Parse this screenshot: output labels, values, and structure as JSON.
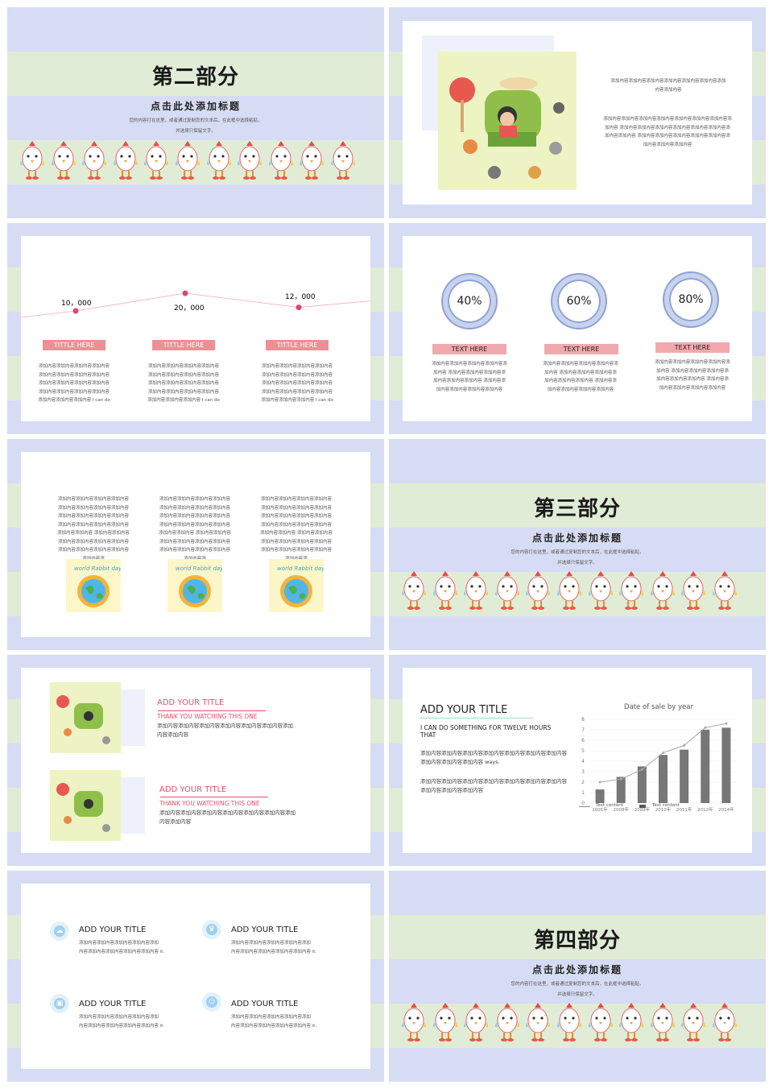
{
  "section2": {
    "title": "第二部分",
    "subtitle": "点击此处添加标题",
    "line1": "您的内容打在这里，或者通过复制您的文本后，在此框中选择粘贴，",
    "line2": "并选择只保留文字。"
  },
  "slide2": {
    "text1": "添加内容添加内容添加内容添加内容添加内容添加内容添加",
    "text1b": "内容添加内容",
    "text2": [
      "添加内容添加内容添加内容添加内容添加内容添加内容添加内容添",
      "加内容 添加内容添加内容添加内容添加内容添加内容添加内容添",
      "加内容添加内容 添加内容添加内容添加内容添加内容添加内容添",
      "加内容添加内容添加内容"
    ]
  },
  "slide3": {
    "values": [
      "10，000",
      "20，000",
      "12，000"
    ],
    "points": [
      10000,
      20000,
      12000
    ],
    "labels": [
      "TITTLE HERE",
      "TITTLE HERE",
      "TITTLE HERE"
    ],
    "text": [
      "添加内容添加内容添加内容添加内容",
      "添加内容添加内容添加内容添加内容",
      "添加内容添加内容添加内容添加内容",
      "添加内容添加内容添加内容添加内容",
      "添加内容添加内容添加内容 I can do"
    ]
  },
  "slide4": {
    "pct": [
      "40%",
      "60%",
      "80%"
    ],
    "labels": [
      "TEXT  HERE",
      "TEXT  HERE",
      "TEXT  HERE"
    ],
    "text": [
      "添加内容添加内容添加内容添加内容添",
      "加内容 添加内容添加内容添加内容添",
      "加内容添加内容添加内容 添加内容添",
      "加内容添加内容添加内容添加内容"
    ]
  },
  "slide5": {
    "text": [
      "添加内容添加内容添加内容添加内容",
      "添加内容添加内容添加内容添加内容",
      "添加内容添加内容添加内容添加内容",
      "添加内容添加内容添加内容添加内容",
      "添加内容添加内容 添加内容添加内容",
      "添加内容添加内容添加内容添加内容",
      "添加内容添加内容添加内容添加内容",
      "添加内容添"
    ],
    "earth_text": "world Rabbit day"
  },
  "section3": {
    "title": "第三部分",
    "subtitle": "点击此处添加标题",
    "line1": "您的内容打在这里，或者通过复制您的文本后，在此框中选择粘贴，",
    "line2": "并选择只保留文字。"
  },
  "slide7": {
    "items": [
      {
        "title": "ADD YOUR TITLE",
        "sub": "THANK YOU WATCHING THIS ONE",
        "body1": "添加内容添加内容添加内容添加内容添加内容添加内容添加",
        "body2": "内容添加内容"
      },
      {
        "title": "ADD YOUR TITLE",
        "sub": "THANK YOU WATCHING THIS ONE",
        "body1": "添加内容添加内容添加内容添加内容添加内容添加内容添加",
        "body2": "内容添加内容"
      }
    ]
  },
  "slide8": {
    "title": "ADD YOUR TITLE",
    "sub": "I CAN DO SOMETHING FOR TWELVE HOURS THAT",
    "p1": "添加内容添加内容添加内容添加内容添加内容添加内容添加内容添加内容添加内容添加内容 ways.",
    "p2": "添加内容添加内容添加内容添加内容添加内容添加内容添加内容添加内容添加内容添加内容"
  },
  "chart_data": {
    "type": "bar",
    "title": "Date of sale by year",
    "categories": [
      "2005年",
      "2008年",
      "2009年",
      "2010年",
      "2011年",
      "2012年",
      "2014年"
    ],
    "series": [
      {
        "name": "Text content",
        "kind": "bar",
        "values": [
          1.3,
          2.5,
          3.5,
          4.6,
          5.1,
          7.0,
          7.2
        ]
      },
      {
        "name": "Text content",
        "kind": "line",
        "values": [
          2.0,
          2.3,
          3.2,
          4.8,
          5.5,
          7.2,
          7.6
        ]
      }
    ],
    "ylim": [
      0,
      8
    ],
    "yticks": [
      0,
      1,
      2,
      3,
      4,
      5,
      6,
      7,
      8
    ],
    "legend": "bottom",
    "colors": {
      "bar": "#777777",
      "line": "#aaaaaa"
    }
  },
  "slide10": {
    "items": [
      {
        "title": "ADD YOUR TITLE",
        "b1": "添加内容添加内容添加内容添加内容添加",
        "b2": "内容添加内容添加内容添加内容添加内容 it."
      },
      {
        "title": "ADD YOUR TITLE",
        "b1": "添加内容添加内容添加内容添加内容添加",
        "b2": "内容添加内容添加内容添加内容添加内容 it."
      },
      {
        "title": "ADD YOUR TITLE",
        "b1": "添加内容添加内容添加内容添加内容添加",
        "b2": "内容添加内容添加内容添加内容添加内容 it."
      },
      {
        "title": "ADD YOUR TITLE",
        "b1": "添加内容添加内容添加内容添加内容添加",
        "b2": "内容添加内容添加内容添加内容添加内容 it."
      }
    ]
  },
  "section4": {
    "title": "第四部分",
    "subtitle": "点击此处添加标题",
    "line1": "您的内容打在这里，或者通过复制您的文本后，在此框中选择粘贴，",
    "line2": "并选择只保留文字。"
  },
  "colors": {
    "blue_stripe": "#d6dcf3",
    "green_stripe": "#e0ecd6",
    "pink": "#ee8f95",
    "title_pink": "#e8506a"
  }
}
